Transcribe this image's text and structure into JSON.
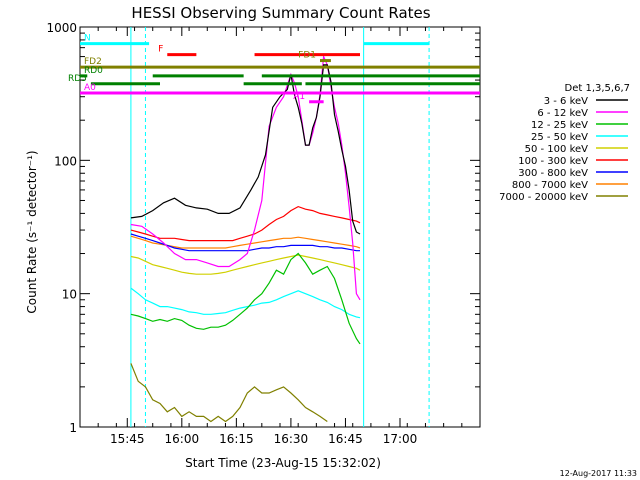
{
  "chart_data": {
    "type": "line",
    "title": "HESSI Observing Summary Count Rates",
    "xlabel": "Start Time (23-Aug-15 15:32:02)",
    "ylabel": "Count Rate (s⁻¹ detector⁻¹)",
    "x_range_minutes": [
      0,
      110
    ],
    "x_ticks": [
      {
        "min": 13,
        "label": "15:45"
      },
      {
        "min": 28,
        "label": "16:00"
      },
      {
        "min": 43,
        "label": "16:15"
      },
      {
        "min": 58,
        "label": "16:30"
      },
      {
        "min": 73,
        "label": "16:45"
      },
      {
        "min": 88,
        "label": "17:00"
      }
    ],
    "y_scale": "log",
    "ylim": [
      1,
      1000
    ],
    "y_ticks": [
      {
        "v": 1,
        "label": "1"
      },
      {
        "v": 10,
        "label": "10"
      },
      {
        "v": 100,
        "label": "100"
      },
      {
        "v": 1000,
        "label": "1000"
      }
    ],
    "legend": {
      "header": "Det 1,3,5,6,7",
      "placement": "right"
    },
    "series": [
      {
        "name": "3 - 6 keV",
        "color": "#000000",
        "x": [
          14,
          17,
          20,
          23,
          26,
          29,
          32,
          35,
          38,
          41,
          44,
          47,
          49,
          51,
          53,
          55,
          57,
          58,
          59,
          60,
          61,
          62,
          63,
          64,
          65,
          66,
          67,
          68,
          69,
          70,
          71,
          72,
          73,
          74,
          75,
          76,
          77
        ],
        "y": [
          37,
          38,
          42,
          48,
          52,
          46,
          44,
          43,
          40,
          40,
          44,
          60,
          75,
          110,
          250,
          300,
          340,
          440,
          310,
          250,
          190,
          130,
          130,
          175,
          210,
          300,
          520,
          520,
          390,
          220,
          165,
          120,
          90,
          60,
          35,
          29,
          28
        ]
      },
      {
        "name": "6 - 12 keV",
        "color": "#ff00ff",
        "x": [
          14,
          17,
          20,
          23,
          26,
          29,
          32,
          35,
          38,
          41,
          44,
          46,
          48,
          50,
          52,
          54,
          56,
          58,
          59,
          60,
          61,
          62,
          63,
          64,
          65,
          66,
          67,
          68,
          69,
          70,
          71,
          72,
          73,
          74,
          75,
          76,
          77
        ],
        "y": [
          33,
          32,
          28,
          24,
          20,
          18,
          18,
          17,
          16,
          16,
          18,
          20,
          30,
          50,
          180,
          250,
          300,
          440,
          380,
          300,
          200,
          130,
          130,
          160,
          210,
          310,
          600,
          520,
          360,
          250,
          190,
          130,
          80,
          45,
          24,
          10,
          9
        ]
      },
      {
        "name": "12 - 25 keV",
        "color": "#00c000",
        "x": [
          14,
          16,
          18,
          20,
          22,
          24,
          26,
          28,
          30,
          32,
          34,
          36,
          38,
          40,
          42,
          44,
          46,
          48,
          50,
          52,
          54,
          56,
          58,
          60,
          62,
          64,
          66,
          68,
          70,
          72,
          74,
          76,
          77
        ],
        "y": [
          7,
          6.8,
          6.5,
          6.2,
          6.4,
          6.2,
          6.5,
          6.3,
          5.8,
          5.5,
          5.4,
          5.6,
          5.6,
          5.8,
          6.3,
          7,
          7.8,
          9,
          10,
          12,
          15,
          14,
          18,
          20,
          17,
          14,
          15,
          16,
          13,
          9,
          6,
          4.6,
          4.2
        ]
      },
      {
        "name": "25 - 50 keV",
        "color": "#00ffff",
        "x": [
          14,
          16,
          18,
          20,
          22,
          24,
          26,
          28,
          30,
          32,
          34,
          36,
          38,
          40,
          42,
          44,
          46,
          48,
          50,
          52,
          54,
          56,
          58,
          60,
          62,
          64,
          66,
          68,
          70,
          72,
          74,
          76,
          77
        ],
        "y": [
          11,
          10,
          9,
          8.5,
          8,
          8,
          7.8,
          7.6,
          7.3,
          7.2,
          7,
          7,
          7.1,
          7.2,
          7.5,
          7.8,
          8,
          8.2,
          8.5,
          8.6,
          9,
          9.5,
          10,
          10.5,
          10,
          9.5,
          9,
          8.6,
          8,
          7.6,
          7,
          6.7,
          6.6
        ]
      },
      {
        "name": "50 - 100 keV",
        "color": "#d0d000",
        "x": [
          14,
          16,
          18,
          20,
          22,
          24,
          26,
          28,
          30,
          32,
          34,
          36,
          38,
          40,
          42,
          44,
          46,
          48,
          50,
          52,
          54,
          56,
          58,
          60,
          62,
          64,
          66,
          68,
          70,
          72,
          74,
          76,
          77
        ],
        "y": [
          19,
          18.5,
          17.5,
          16.5,
          16,
          15.5,
          15,
          14.5,
          14.2,
          14,
          14,
          14,
          14.2,
          14.5,
          15,
          15.5,
          16,
          16.5,
          17,
          17.5,
          18,
          18.5,
          19,
          19.5,
          19,
          18.5,
          18,
          17.5,
          17,
          16.5,
          16,
          15.5,
          15
        ]
      },
      {
        "name": "100 - 300 keV",
        "color": "#ff0000",
        "x": [
          14,
          16,
          18,
          20,
          22,
          24,
          26,
          28,
          30,
          32,
          34,
          36,
          38,
          40,
          42,
          44,
          46,
          48,
          50,
          52,
          54,
          56,
          58,
          60,
          62,
          64,
          66,
          68,
          70,
          72,
          74,
          76,
          77
        ],
        "y": [
          30,
          29,
          28,
          27,
          26,
          26,
          26,
          25.5,
          25,
          25,
          25,
          25,
          25,
          25,
          25,
          26,
          27,
          28,
          30,
          33,
          36,
          38,
          42,
          45,
          43,
          42,
          40,
          39,
          38,
          37,
          36,
          35,
          34
        ]
      },
      {
        "name": "300 - 800 keV",
        "color": "#0000ff",
        "x": [
          14,
          16,
          18,
          20,
          22,
          24,
          26,
          28,
          30,
          32,
          34,
          36,
          38,
          40,
          42,
          44,
          46,
          48,
          50,
          52,
          54,
          56,
          58,
          60,
          62,
          64,
          66,
          68,
          70,
          72,
          74,
          76,
          77
        ],
        "y": [
          28,
          27,
          26,
          25,
          24,
          23,
          22,
          21.5,
          21,
          21,
          21,
          21,
          21,
          21,
          21,
          21,
          21,
          21.5,
          22,
          22,
          22.5,
          22.5,
          23,
          23,
          23,
          23,
          22.5,
          22.5,
          22,
          22,
          21.5,
          21,
          21
        ]
      },
      {
        "name": "800 - 7000 keV",
        "color": "#ff8000",
        "x": [
          14,
          16,
          18,
          20,
          22,
          24,
          26,
          28,
          30,
          32,
          34,
          36,
          38,
          40,
          42,
          44,
          46,
          48,
          50,
          52,
          54,
          56,
          58,
          60,
          62,
          64,
          66,
          68,
          70,
          72,
          74,
          76,
          77
        ],
        "y": [
          27,
          26,
          25,
          24,
          23.5,
          23,
          22.5,
          22,
          22,
          22,
          22,
          22,
          22,
          22,
          22.5,
          23,
          23.5,
          24,
          24.5,
          25,
          25.5,
          26,
          26,
          26.5,
          26,
          25.5,
          25,
          24.5,
          24,
          23.5,
          23,
          22.5,
          22
        ]
      },
      {
        "name": "7000 - 20000 keV",
        "color": "#808000",
        "x": [
          14,
          16,
          18,
          20,
          22,
          24,
          26,
          28,
          30,
          32,
          34,
          36,
          38,
          40,
          42,
          44,
          46,
          48,
          50,
          52,
          54,
          56,
          58,
          60,
          62,
          64,
          66,
          68
        ],
        "y": [
          3,
          2.2,
          2,
          1.6,
          1.5,
          1.3,
          1.4,
          1.2,
          1.3,
          1.2,
          1.2,
          1.1,
          1.2,
          1.1,
          1.2,
          1.4,
          1.8,
          2,
          1.8,
          1.8,
          1.9,
          2,
          1.8,
          1.6,
          1.4,
          1.3,
          1.2,
          1.1
        ]
      }
    ],
    "flag_bars": [
      {
        "label": "N",
        "label_color": "#00ffff",
        "color": "#00ffff",
        "y": 750,
        "segments": [
          [
            0,
            19
          ],
          [
            78,
            96
          ]
        ]
      },
      {
        "label": "F",
        "label_color": "#ff0000",
        "color": "#ff0000",
        "y": 620,
        "segments": [
          [
            24,
            32
          ],
          [
            48,
            77
          ]
        ]
      },
      {
        "label": "FD1",
        "label_color": "#808000",
        "color": "#808000",
        "y": 560,
        "segments": [
          [
            66,
            69
          ]
        ]
      },
      {
        "label": "FD2",
        "label_color": "#808000",
        "color": "#808000",
        "y": 500,
        "segments": [
          [
            0,
            110
          ]
        ]
      },
      {
        "label": "RD0",
        "label_color": "#008000",
        "color": "#008000",
        "y": 430,
        "segments": [
          [
            0,
            2
          ],
          [
            20,
            45
          ],
          [
            50,
            110
          ]
        ]
      },
      {
        "label": "RD5",
        "label_color": "#008000",
        "color": "#008000",
        "y": 375,
        "segments": [
          [
            3,
            22
          ],
          [
            45,
            61
          ],
          [
            62,
            110
          ]
        ]
      },
      {
        "label": "A0",
        "label_color": "#ff00ff",
        "color": "#ff00ff",
        "y": 320,
        "segments": [
          [
            0,
            110
          ]
        ]
      },
      {
        "label": "A1",
        "label_color": "#ff00ff",
        "color": "#ff00ff",
        "y": 275,
        "segments": [
          [
            63,
            67
          ]
        ]
      }
    ],
    "vertical_markers": [
      {
        "x": 14,
        "color": "#00ffff",
        "dashed": false
      },
      {
        "x": 18,
        "color": "#00ffff",
        "dashed": true
      },
      {
        "x": 78,
        "color": "#00ffff",
        "dashed": false
      },
      {
        "x": 96,
        "color": "#00ffff",
        "dashed": true
      }
    ],
    "grid": false
  },
  "footer": {
    "timestamp": "12-Aug-2017 11:33"
  }
}
